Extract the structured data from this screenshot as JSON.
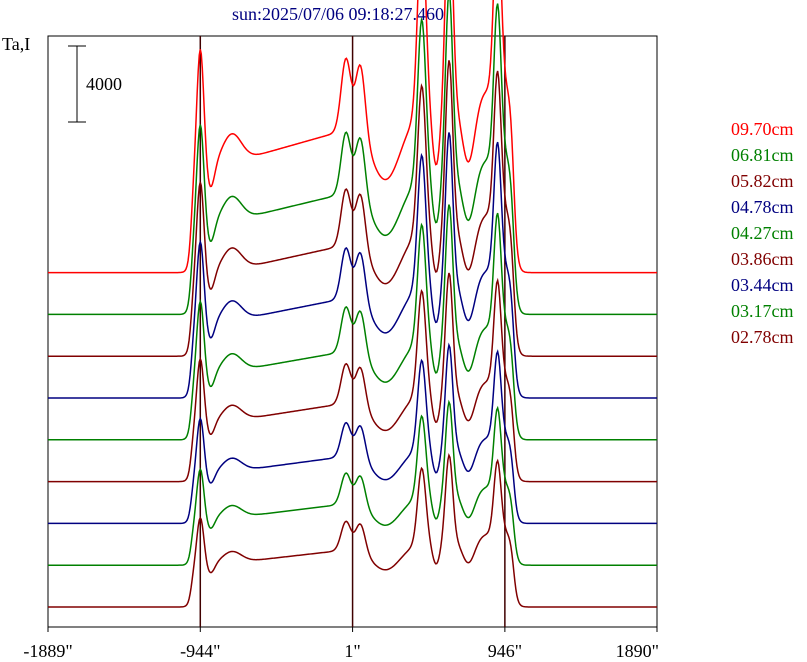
{
  "chart_data": {
    "type": "line",
    "title": "sun:2025/07/06 09:18:27.460",
    "ylabel": "Ta,I",
    "scale_bar_label": "4000",
    "scale_bar_value": 4000,
    "xlim": [
      -1889,
      1890
    ],
    "x_ticks": [
      -1889,
      -944,
      1,
      946,
      1890
    ],
    "x_tick_labels": [
      "-1889\"",
      "-944\"",
      "1\"",
      "946\"",
      "1890\""
    ],
    "vertical_markers": [
      -944,
      1,
      946
    ],
    "grid": false,
    "legend_position": "right",
    "stack_offset": 2200,
    "series": [
      {
        "name": "09.70cm",
        "color": "#ff0000",
        "baseline": 17600,
        "peak_scale": 1.0
      },
      {
        "name": "06.81cm",
        "color": "#008000",
        "baseline": 15400,
        "peak_scale": 0.85
      },
      {
        "name": "05.82cm",
        "color": "#800000",
        "baseline": 13200,
        "peak_scale": 0.78
      },
      {
        "name": "04.78cm",
        "color": "#000080",
        "baseline": 11000,
        "peak_scale": 0.7
      },
      {
        "name": "04.27cm",
        "color": "#008000",
        "baseline": 8800,
        "peak_scale": 0.62
      },
      {
        "name": "03.86cm",
        "color": "#800000",
        "baseline": 6600,
        "peak_scale": 0.55
      },
      {
        "name": "03.44cm",
        "color": "#000080",
        "baseline": 4400,
        "peak_scale": 0.47
      },
      {
        "name": "03.17cm",
        "color": "#008000",
        "baseline": 2200,
        "peak_scale": 0.43
      },
      {
        "name": "02.78cm",
        "color": "#800000",
        "baseline": 0,
        "peak_scale": 0.4
      }
    ],
    "profile": {
      "plateau_start": -1000,
      "plateau_end": 1000,
      "plateau_left_level": 5200,
      "plateau_right_level": 10000,
      "peaks": [
        {
          "x": -944,
          "height": 6500,
          "width": 22
        },
        {
          "x": -750,
          "height": 1500,
          "width": 60
        },
        {
          "x": -40,
          "height": 3800,
          "width": 30
        },
        {
          "x": 50,
          "height": 3800,
          "width": 30
        },
        {
          "x": 430,
          "height": 9800,
          "width": 25
        },
        {
          "x": 600,
          "height": 11000,
          "width": 22
        },
        {
          "x": 900,
          "height": 9500,
          "width": 22
        }
      ],
      "valleys": [
        {
          "x": -880,
          "depth": 1200,
          "width": 25
        },
        {
          "x": 210,
          "depth": 3200,
          "width": 90
        },
        {
          "x": 520,
          "depth": 3200,
          "width": 25
        },
        {
          "x": 720,
          "depth": 3500,
          "width": 40
        }
      ]
    },
    "ylim": [
      -200,
      29000
    ]
  }
}
